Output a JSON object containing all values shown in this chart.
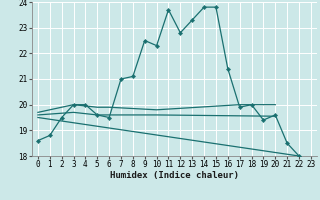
{
  "title": "",
  "xlabel": "Humidex (Indice chaleur)",
  "xlim": [
    -0.5,
    23.5
  ],
  "ylim": [
    18,
    24
  ],
  "xticks": [
    0,
    1,
    2,
    3,
    4,
    5,
    6,
    7,
    8,
    9,
    10,
    11,
    12,
    13,
    14,
    15,
    16,
    17,
    18,
    19,
    20,
    21,
    22,
    23
  ],
  "yticks": [
    18,
    19,
    20,
    21,
    22,
    23,
    24
  ],
  "bg_color": "#cce8e8",
  "grid_color": "#b0d8d8",
  "line_color": "#1a7070",
  "lines": [
    {
      "x": [
        0,
        1,
        2,
        3,
        4,
        5,
        6,
        7,
        8,
        9,
        10,
        11,
        12,
        13,
        14,
        15,
        16,
        17,
        18,
        19,
        20,
        21,
        22
      ],
      "y": [
        18.6,
        18.8,
        19.5,
        20.0,
        20.0,
        19.6,
        19.5,
        21.0,
        21.1,
        22.5,
        22.3,
        23.7,
        22.8,
        23.3,
        23.8,
        23.8,
        21.4,
        19.9,
        20.0,
        19.4,
        19.6,
        18.5,
        18.0
      ],
      "marker": true
    },
    {
      "x": [
        0,
        3,
        5,
        6,
        10,
        17,
        20
      ],
      "y": [
        19.7,
        20.0,
        19.9,
        19.9,
        19.8,
        20.0,
        20.0
      ],
      "marker": false
    },
    {
      "x": [
        0,
        3,
        5,
        6,
        10,
        20
      ],
      "y": [
        19.6,
        19.7,
        19.6,
        19.6,
        19.6,
        19.55
      ],
      "marker": false
    },
    {
      "x": [
        0,
        22
      ],
      "y": [
        19.5,
        18.0
      ],
      "marker": false
    }
  ]
}
